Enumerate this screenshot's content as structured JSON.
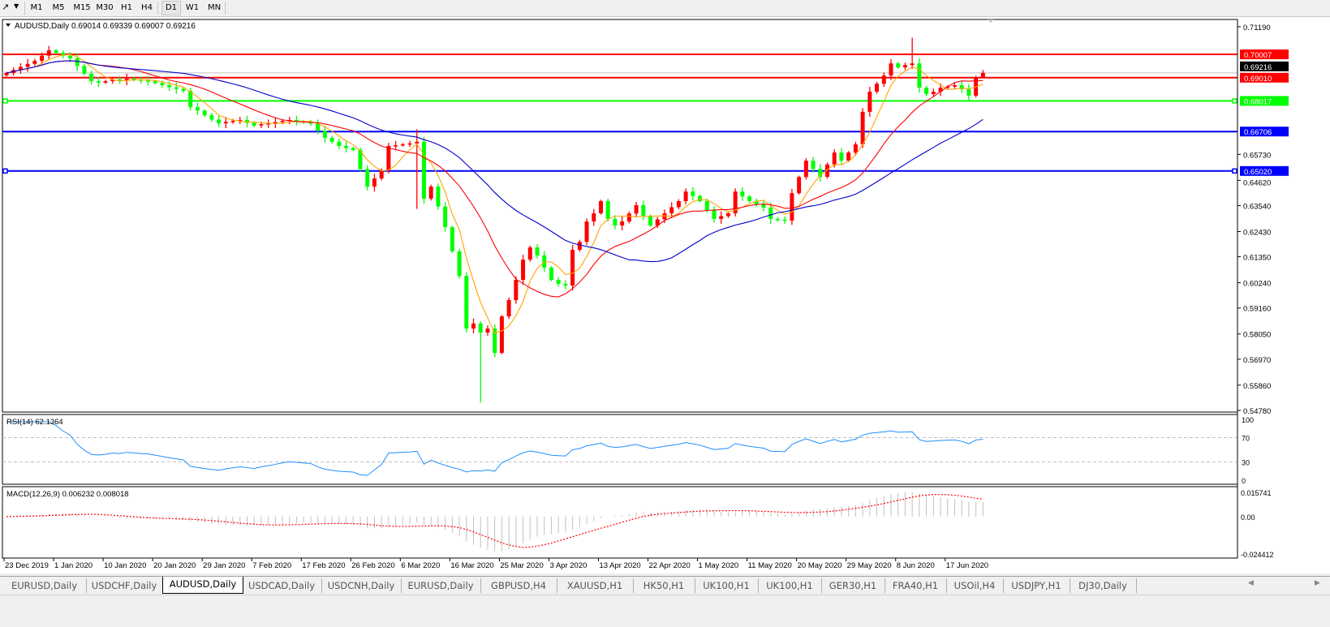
{
  "toolbar": {
    "timeframes": [
      "M1",
      "M5",
      "M15",
      "M30",
      "H1",
      "H4",
      "D1",
      "W1",
      "MN"
    ],
    "active_timeframe": "D1"
  },
  "chart": {
    "header": "AUDUSD,Daily",
    "ohlc_text": "0.69014 0.69339 0.69007 0.69216",
    "rsi_label": "RSI(14) 62.1364",
    "macd_label": "MACD(12,26,9) 0.006232 0.008018"
  },
  "chart_data": {
    "type": "candlestick",
    "symbol": "AUDUSD",
    "timeframe": "Daily",
    "up_color": "#ff0000",
    "down_color": "#00ff00",
    "last_bar": {
      "open": 0.69014,
      "high": 0.69339,
      "low": 0.69007,
      "close": 0.69216
    },
    "closes": [
      0.6921,
      0.6934,
      0.6947,
      0.696,
      0.6973,
      0.6995,
      0.7018,
      0.7007,
      0.6995,
      0.6984,
      0.6951,
      0.6918,
      0.6886,
      0.688,
      0.6886,
      0.6893,
      0.689,
      0.6897,
      0.6893,
      0.6889,
      0.6886,
      0.6878,
      0.6869,
      0.686,
      0.6853,
      0.6845,
      0.6775,
      0.676,
      0.674,
      0.6722,
      0.6706,
      0.6712,
      0.6716,
      0.672,
      0.6708,
      0.6696,
      0.6702,
      0.6706,
      0.6711,
      0.6716,
      0.672,
      0.6715,
      0.671,
      0.6706,
      0.6675,
      0.6644,
      0.6627,
      0.6609,
      0.66,
      0.6592,
      0.651,
      0.6435,
      0.647,
      0.6505,
      0.6609,
      0.6612,
      0.6616,
      0.662,
      0.6627,
      0.6384,
      0.6435,
      0.635,
      0.6262,
      0.6158,
      0.6053,
      0.5828,
      0.585,
      0.5811,
      0.5828,
      0.5724,
      0.588,
      0.595,
      0.6036,
      0.6123,
      0.6175,
      0.6141,
      0.6089,
      0.6036,
      0.6019,
      0.6012,
      0.6165,
      0.6199,
      0.6286,
      0.6321,
      0.6373,
      0.6297,
      0.6269,
      0.6286,
      0.632,
      0.6356,
      0.631,
      0.6269,
      0.6295,
      0.6321,
      0.6347,
      0.6373,
      0.6414,
      0.6395,
      0.6373,
      0.6335,
      0.6297,
      0.6309,
      0.6321,
      0.6414,
      0.6393,
      0.6373,
      0.6359,
      0.6345,
      0.6297,
      0.6294,
      0.629,
      0.6407,
      0.6476,
      0.6546,
      0.6511,
      0.6477,
      0.653,
      0.6581,
      0.6546,
      0.6581,
      0.6616,
      0.6755,
      0.6841,
      0.6875,
      0.691,
      0.6962,
      0.6945,
      0.6955,
      0.6962,
      0.6858,
      0.6831,
      0.6841,
      0.6858,
      0.6863,
      0.6869,
      0.6852,
      0.6824,
      0.6901,
      0.69216
    ],
    "wick_extremes": [
      {
        "bar": 58,
        "high": 0.668,
        "low": 0.634
      },
      {
        "bar": 67,
        "low": 0.5512
      },
      {
        "bar": 128,
        "high": 0.7072
      }
    ],
    "ylim": [
      0.5471,
      0.715
    ],
    "y_ticks": [
      "0.71190",
      "0.65730",
      "0.64620",
      "0.63540",
      "0.62430",
      "0.61350",
      "0.60240",
      "0.59160",
      "0.58050",
      "0.56970",
      "0.55860",
      "0.54780"
    ],
    "x_ticks": [
      "23 Dec 2019",
      "1 Jan 2020",
      "10 Jan 2020",
      "20 Jan 2020",
      "29 Jan 2020",
      "7 Feb 2020",
      "17 Feb 2020",
      "26 Feb 2020",
      "6 Mar 2020",
      "16 Mar 2020",
      "25 Mar 2020",
      "3 Apr 2020",
      "13 Apr 2020",
      "22 Apr 2020",
      "1 May 2020",
      "11 May 2020",
      "20 May 2020",
      "29 May 2020",
      "8 Jun 2020",
      "17 Jun 2020"
    ],
    "moving_averages": [
      {
        "color": "#ffa500"
      },
      {
        "color": "#ff0000"
      },
      {
        "color": "#0000cd"
      }
    ],
    "bid_line": {
      "value": "0.69216",
      "color": "#c0c0c0"
    },
    "horizontal_lines": [
      {
        "value": "0.70007",
        "color": "#ff0000"
      },
      {
        "value": "0.69010",
        "color": "#ff0000"
      },
      {
        "value": "0.68017",
        "color": "#00ff00"
      },
      {
        "value": "0.66706",
        "color": "#0000ff"
      },
      {
        "value": "0.65020",
        "color": "#0000ff"
      }
    ],
    "rsi": {
      "period": 14,
      "levels": [
        70,
        30
      ],
      "axis_labels": [
        "100",
        "70",
        "30",
        "0"
      ],
      "color": "#1e90ff"
    },
    "macd": {
      "fast": 12,
      "slow": 26,
      "signal": 9,
      "axis_labels": [
        "0.015741",
        "0.00",
        "-0.024412"
      ],
      "ylim": [
        -0.024412,
        0.015741
      ],
      "histogram_color": "#c0c0c0",
      "signal_color": "#ff0000"
    }
  },
  "tabs": [
    {
      "label": "EURUSD,Daily"
    },
    {
      "label": "USDCHF,Daily"
    },
    {
      "label": "AUDUSD,Daily",
      "active": true
    },
    {
      "label": "USDCAD,Daily"
    },
    {
      "label": "USDCNH,Daily"
    },
    {
      "label": "EURUSD,Daily"
    },
    {
      "label": "GBPUSD,H4"
    },
    {
      "label": "XAUUSD,H1"
    },
    {
      "label": "HK50,H1"
    },
    {
      "label": "UK100,H1"
    },
    {
      "label": "UK100,H1"
    },
    {
      "label": "GER30,H1"
    },
    {
      "label": "FRA40,H1"
    },
    {
      "label": "USOil,H4"
    },
    {
      "label": "USDJPY,H1"
    },
    {
      "label": "DJ30,Daily"
    }
  ]
}
